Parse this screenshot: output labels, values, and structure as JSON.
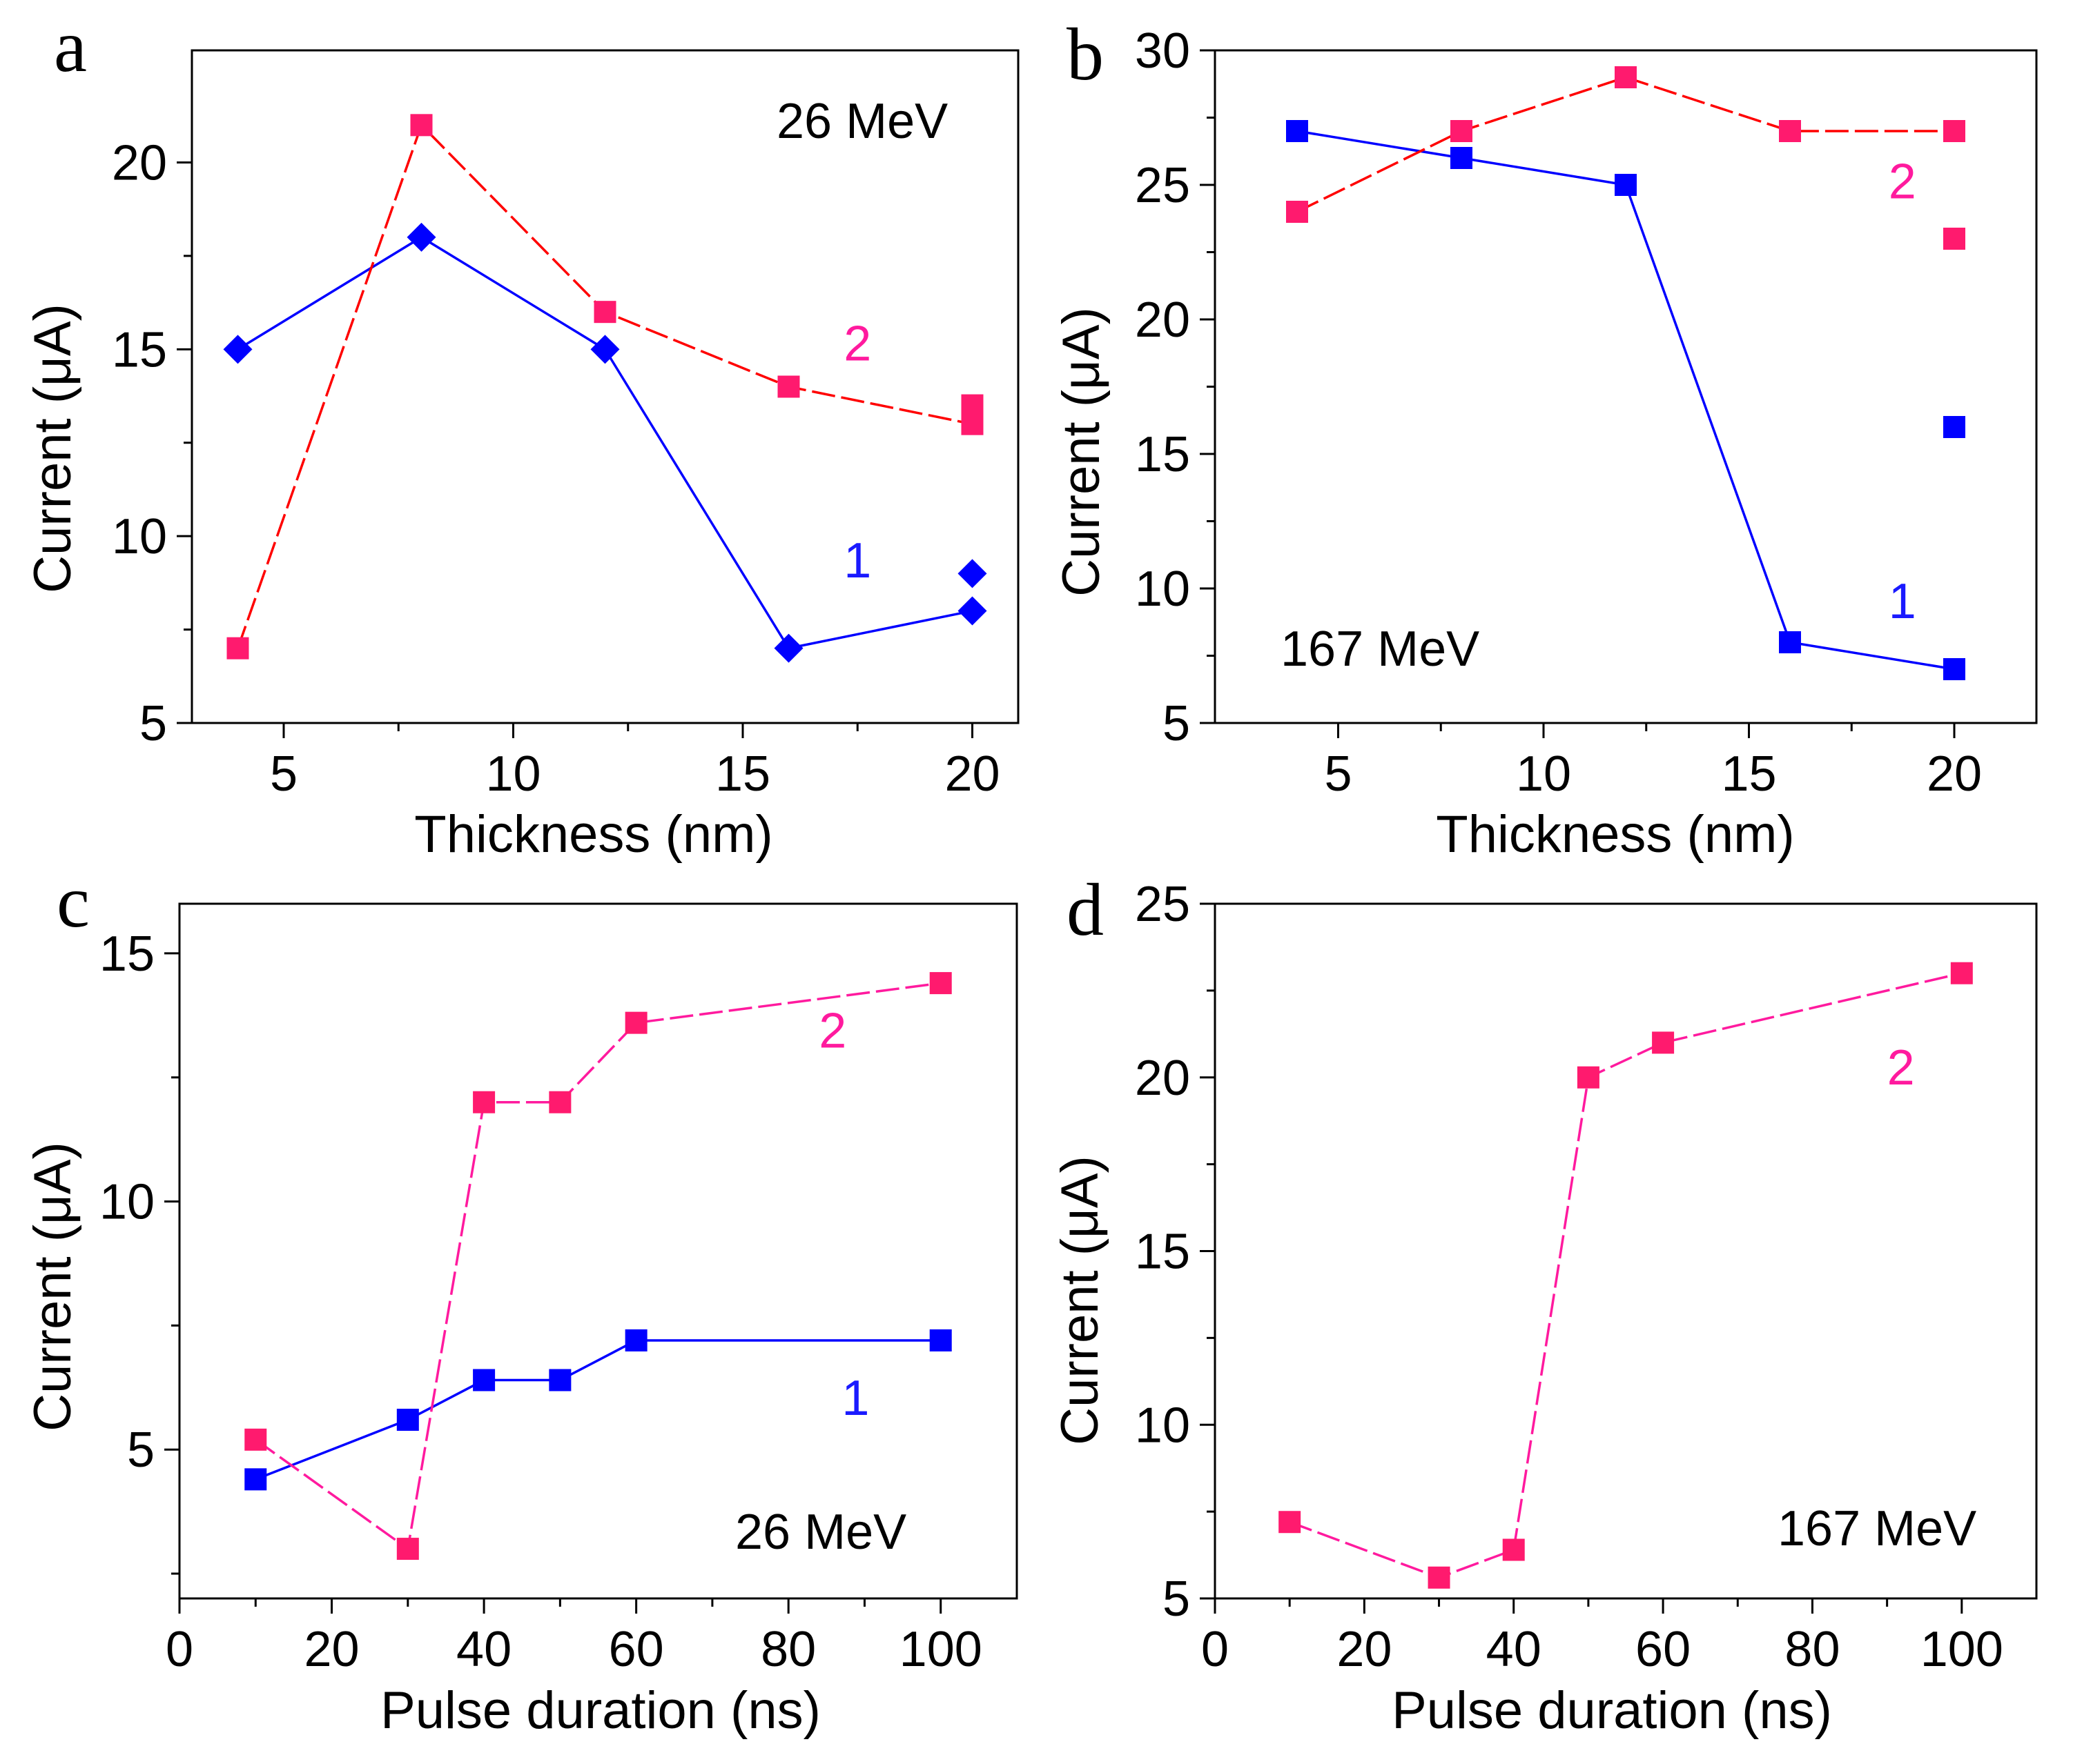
{
  "chart_data": [
    {
      "panel": "a",
      "type": "line",
      "annotation": "26 MeV",
      "xlabel": "Thickness (nm)",
      "ylabel": "Current (μA)",
      "xlim": [
        3,
        21
      ],
      "ylim": [
        5,
        23
      ],
      "xticks": [
        5,
        10,
        15,
        20
      ],
      "xminor": [
        7.5,
        12.5,
        17.5
      ],
      "yticks": [
        5,
        10,
        15,
        20
      ],
      "yminor": [
        7.5,
        12.5,
        17.5
      ],
      "series": [
        {
          "name": "1",
          "color": "#0000ff",
          "marker": "diamond",
          "dash": "solid",
          "x": [
            4,
            8,
            12,
            16,
            20
          ],
          "y": [
            15,
            18,
            15,
            7,
            8
          ],
          "extra_points": [
            {
              "x": 20,
              "y": 9
            }
          ],
          "label_at": [
            17.2,
            8.9
          ]
        },
        {
          "name": "2",
          "color": "#ff0000",
          "marker_color": "#ff1a6e",
          "marker": "square",
          "dash": "dashed",
          "x": [
            4,
            8,
            12,
            16,
            20
          ],
          "y": [
            7,
            21,
            16,
            14,
            13
          ],
          "extra_points": [
            {
              "x": 20,
              "y": 13.5
            }
          ],
          "label_at": [
            17.2,
            14.7
          ]
        }
      ]
    },
    {
      "panel": "b",
      "type": "line",
      "annotation": "167 MeV",
      "xlabel": "Thickness (nm)",
      "ylabel": "Current (μA)",
      "xlim": [
        2,
        22
      ],
      "ylim": [
        5,
        30
      ],
      "xticks": [
        5,
        10,
        15,
        20
      ],
      "xminor": [
        7.5,
        12.5,
        17.5
      ],
      "yticks": [
        5,
        10,
        15,
        20,
        25,
        30
      ],
      "yminor": [
        7.5,
        12.5,
        17.5,
        22.5,
        27.5
      ],
      "series": [
        {
          "name": "1",
          "color": "#0000ff",
          "marker": "square",
          "dash": "solid",
          "x": [
            4,
            8,
            12,
            16,
            20
          ],
          "y": [
            27,
            26,
            25,
            8,
            7
          ],
          "extra_points": [
            {
              "x": 20,
              "y": 16
            }
          ],
          "label_at": [
            18.4,
            8.9
          ]
        },
        {
          "name": "2",
          "color": "#ff0000",
          "marker_color": "#ff1a6e",
          "marker": "square",
          "dash": "dashed",
          "x": [
            4,
            8,
            12,
            16,
            20
          ],
          "y": [
            24,
            27,
            29,
            27,
            27
          ],
          "extra_points": [
            {
              "x": 20,
              "y": 23
            }
          ],
          "label_at": [
            18.4,
            24.5
          ]
        }
      ]
    },
    {
      "panel": "c",
      "type": "line",
      "annotation": "26 MeV",
      "xlabel": "Pulse duration (ns)",
      "ylabel": "Current (μA)",
      "xlim": [
        0,
        110
      ],
      "ylim": [
        2.0,
        16.0
      ],
      "xticks": [
        0,
        20,
        40,
        60,
        80,
        100
      ],
      "xminor": [
        10,
        30,
        50,
        70,
        90
      ],
      "yticks": [
        5,
        10,
        15
      ],
      "yminor": [
        2.5,
        7.5,
        12.5
      ],
      "series": [
        {
          "name": "1",
          "color": "#0000ff",
          "marker": "square",
          "dash": "solid",
          "x": [
            10,
            30,
            40,
            50,
            60,
            100
          ],
          "y": [
            4.4,
            5.6,
            6.4,
            6.4,
            7.2,
            7.2
          ],
          "label_at": [
            87,
            5.7
          ]
        },
        {
          "name": "2",
          "color": "#ff1a9e",
          "marker_color": "#ff1a6e",
          "marker": "square",
          "dash": "dashed",
          "x": [
            10,
            30,
            40,
            50,
            60,
            100
          ],
          "y": [
            5.2,
            3.0,
            12.0,
            12.0,
            13.6,
            14.4
          ],
          "label_at": [
            84,
            13.1
          ]
        }
      ]
    },
    {
      "panel": "d",
      "type": "line",
      "annotation": "167 MeV",
      "xlabel": "Pulse duration (ns)",
      "ylabel": "Current  (μA)",
      "xlim": [
        0,
        110
      ],
      "ylim": [
        5,
        25
      ],
      "xticks": [
        0,
        20,
        40,
        60,
        80,
        100
      ],
      "xminor": [
        10,
        30,
        50,
        70,
        90
      ],
      "yticks": [
        5,
        10,
        15,
        20,
        25
      ],
      "yminor": [
        7.5,
        12.5,
        17.5,
        22.5
      ],
      "series": [
        {
          "name": "2",
          "color": "#ff1a9e",
          "marker_color": "#ff1a6e",
          "marker": "square",
          "dash": "dashed",
          "x": [
            10,
            30,
            40,
            50,
            60,
            100
          ],
          "y": [
            7.2,
            5.6,
            6.4,
            20.0,
            21.0,
            23.0
          ],
          "label_at": [
            90,
            19.8
          ]
        }
      ]
    }
  ]
}
